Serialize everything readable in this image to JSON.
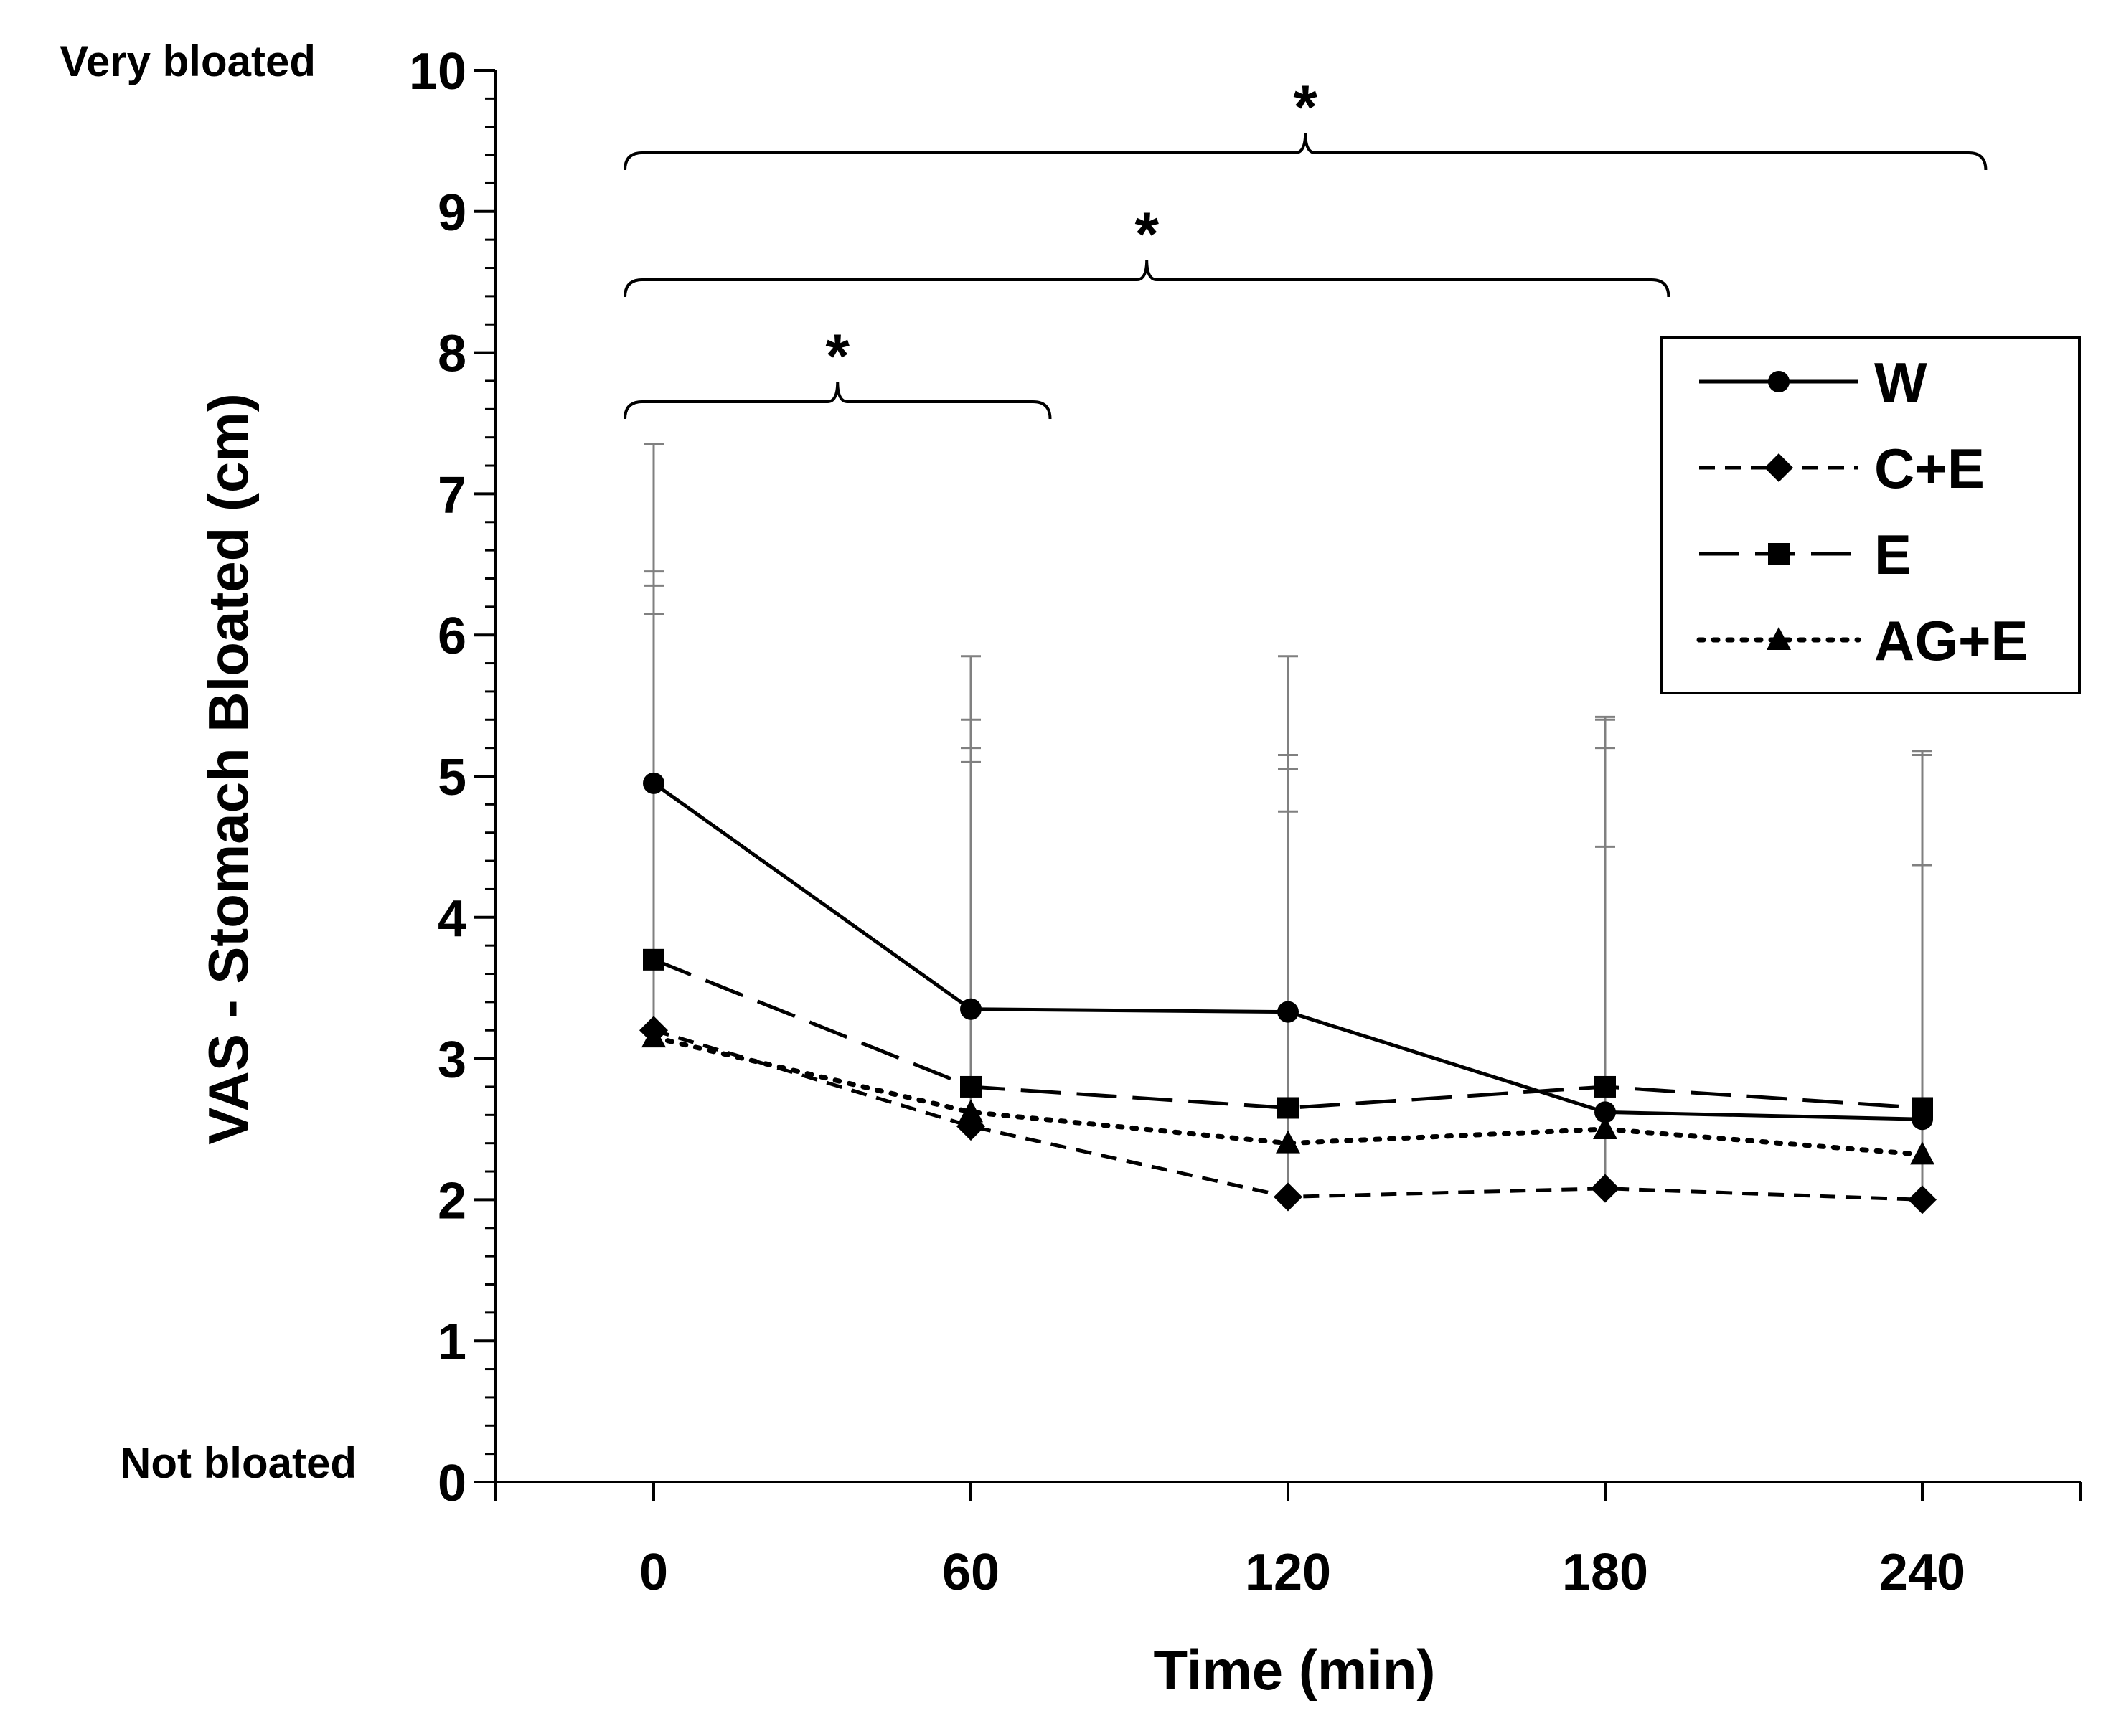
{
  "chart_data": {
    "type": "line",
    "xlabel": "Time (min)",
    "ylabel": "VAS - Stomach Bloated (cm)",
    "x": [
      0,
      60,
      120,
      180,
      240
    ],
    "x_tick_labels": [
      "0",
      "60",
      "120",
      "180",
      "240"
    ],
    "xlim": [
      -30,
      270
    ],
    "ylim": [
      0,
      10
    ],
    "y_ticks": [
      0,
      1,
      2,
      3,
      4,
      5,
      6,
      7,
      8,
      9,
      10
    ],
    "y_tick_labels": [
      "0",
      "1",
      "2",
      "3",
      "4",
      "5",
      "6",
      "7",
      "8",
      "9",
      "10"
    ],
    "y_anchor_labels": {
      "top": "Very bloated",
      "bottom": "Not bloated"
    },
    "grid": false,
    "legend_position": "top-right",
    "series": [
      {
        "name": "W",
        "marker": "circle",
        "line": "solid",
        "values": [
          4.95,
          3.35,
          3.33,
          2.62,
          2.57
        ],
        "error_upper": [
          7.35,
          5.85,
          5.85,
          5.42,
          5.18
        ]
      },
      {
        "name": "C+E",
        "marker": "diamond",
        "line": "short-dash",
        "values": [
          3.2,
          2.52,
          2.02,
          2.08,
          2.0
        ],
        "error_upper": [
          6.15,
          5.1,
          4.75,
          4.5,
          4.37
        ]
      },
      {
        "name": "E",
        "marker": "square",
        "line": "long-dash",
        "values": [
          3.7,
          2.8,
          2.65,
          2.8,
          2.65
        ],
        "error_upper": [
          6.45,
          5.4,
          5.15,
          5.4,
          5.18
        ]
      },
      {
        "name": "AG+E",
        "marker": "triangle",
        "line": "dotted",
        "values": [
          3.15,
          2.62,
          2.4,
          2.5,
          2.32
        ],
        "error_upper": [
          6.35,
          5.2,
          5.05,
          5.2,
          5.15
        ]
      }
    ],
    "significance_brackets": [
      {
        "from": 0,
        "to": 75,
        "label": "*"
      },
      {
        "from": 0,
        "to": 192,
        "label": "*"
      },
      {
        "from": 0,
        "to": 252,
        "label": "*"
      }
    ]
  }
}
